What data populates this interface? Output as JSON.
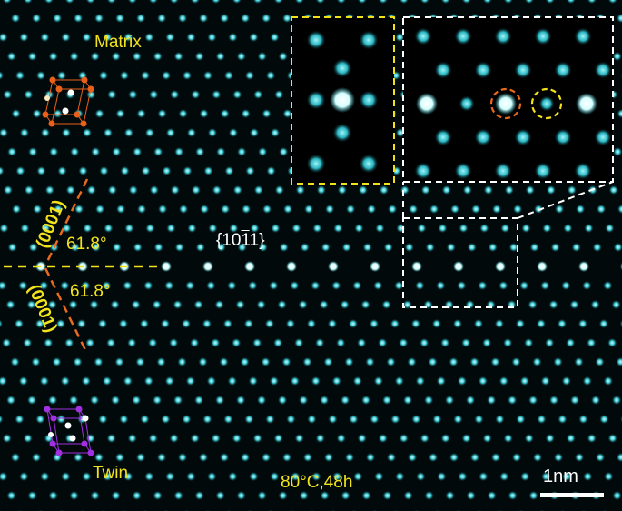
{
  "labels": {
    "matrix": "Matrix",
    "twin": "Twin",
    "plane_upper": "(0001)",
    "plane_lower": "(0001)",
    "angle_upper": "61.8°",
    "angle_lower": "61.8°",
    "twin_plane": "{10",
    "twin_plane_bar": "1",
    "twin_plane_end": "1}",
    "condition": "80°C,48h",
    "scale_bar": "1nm"
  },
  "colors": {
    "background": "#000000",
    "atom_column": "#3ac8d2",
    "atom_bright": "#ffffff",
    "label_yellow": "#f2e21c",
    "dash_orange": "#e86a1e",
    "dash_yellow": "#f2e21c",
    "dash_white": "#ffffff",
    "unit_cell_matrix": "#e8601a",
    "unit_cell_twin": "#a030e0"
  },
  "icons": {
    "matrix_cell": "hexagonal-unit-cell-icon",
    "twin_cell": "hexagonal-unit-cell-icon"
  }
}
